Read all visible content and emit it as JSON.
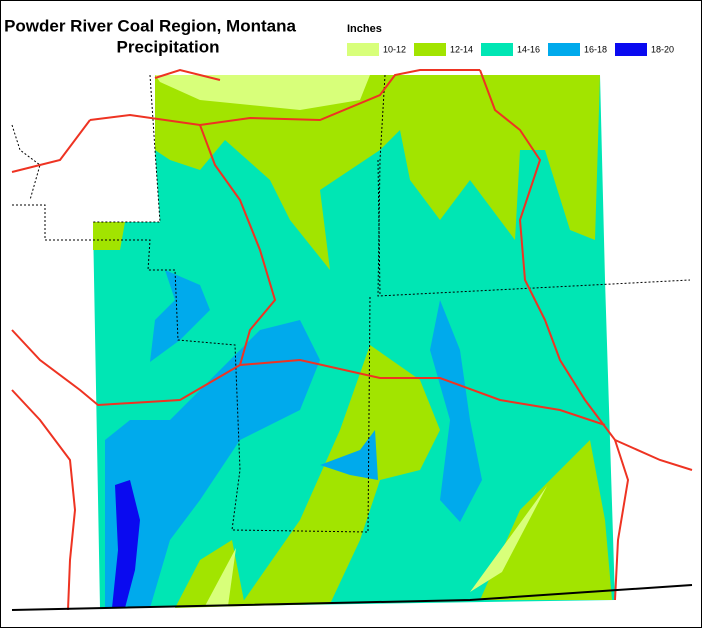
{
  "header": {
    "title": "Powder River Coal Region, Montana",
    "subtitle": "Precipitation"
  },
  "legend": {
    "title": "Inches",
    "items": [
      {
        "label": "10-12",
        "color": "#d8ff7a"
      },
      {
        "label": "12-14",
        "color": "#a2e400"
      },
      {
        "label": "14-16",
        "color": "#00e6b4"
      },
      {
        "label": "16-18",
        "color": "#00aaec"
      },
      {
        "label": "18-20",
        "color": "#0a0af0"
      }
    ]
  }
}
